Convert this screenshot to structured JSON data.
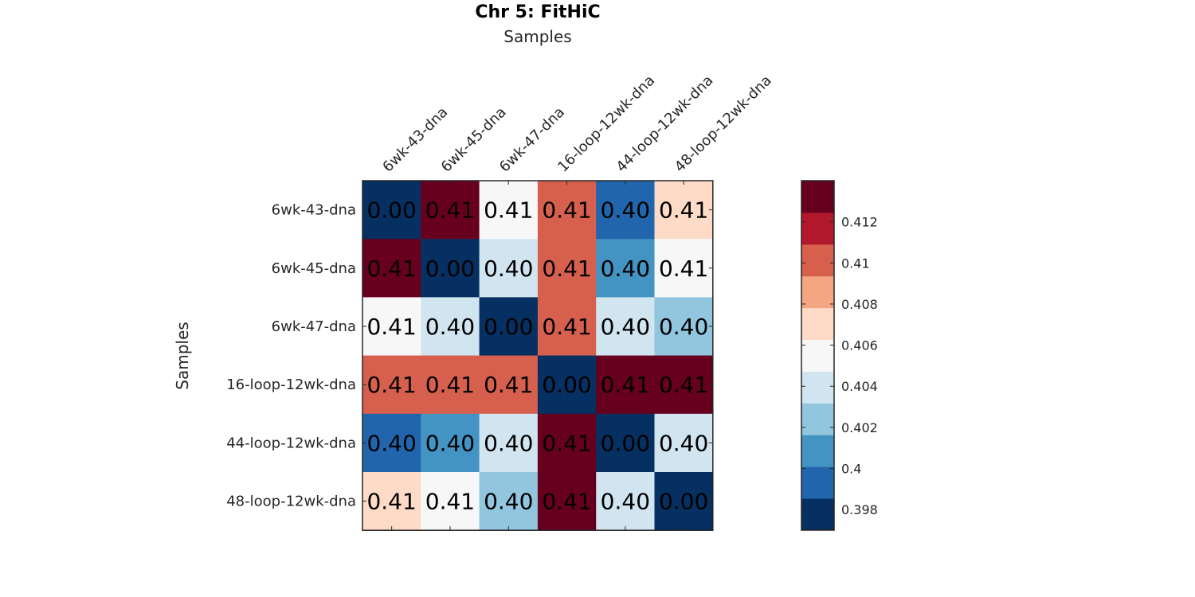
{
  "chart_data": {
    "type": "heatmap",
    "title": "Chr 5: FitHiC",
    "xlabel": "Samples",
    "ylabel": "Samples",
    "x_categories": [
      "6wk-43-dna",
      "6wk-45-dna",
      "6wk-47-dna",
      "16-loop-12wk-dna",
      "44-loop-12wk-dna",
      "48-loop-12wk-dna"
    ],
    "y_categories": [
      "6wk-43-dna",
      "6wk-45-dna",
      "6wk-47-dna",
      "16-loop-12wk-dna",
      "44-loop-12wk-dna",
      "48-loop-12wk-dna"
    ],
    "values": [
      [
        0.0,
        0.4138,
        0.4062,
        0.4101,
        0.399,
        0.4065
      ],
      [
        0.4138,
        0.0,
        0.4041,
        0.41,
        0.4009,
        0.4061
      ],
      [
        0.4062,
        0.4041,
        0.0,
        0.4101,
        0.4041,
        0.4028
      ],
      [
        0.4101,
        0.41,
        0.4101,
        0.0,
        0.414,
        0.4139
      ],
      [
        0.399,
        0.4009,
        0.4041,
        0.414,
        0.0,
        0.4041
      ],
      [
        0.4065,
        0.4061,
        0.4028,
        0.4139,
        0.4041,
        0.0
      ]
    ],
    "cell_labels": [
      [
        "0.00",
        "0.41",
        "0.41",
        "0.41",
        "0.40",
        "0.41"
      ],
      [
        "0.41",
        "0.00",
        "0.40",
        "0.41",
        "0.40",
        "0.41"
      ],
      [
        "0.41",
        "0.40",
        "0.00",
        "0.41",
        "0.40",
        "0.40"
      ],
      [
        "0.41",
        "0.41",
        "0.41",
        "0.00",
        "0.41",
        "0.41"
      ],
      [
        "0.40",
        "0.40",
        "0.40",
        "0.41",
        "0.00",
        "0.40"
      ],
      [
        "0.41",
        "0.41",
        "0.40",
        "0.41",
        "0.40",
        "0.00"
      ]
    ],
    "colorbar": {
      "range": [
        0.397,
        0.414
      ],
      "ticks": [
        {
          "value": 0.398,
          "label": "0.398"
        },
        {
          "value": 0.4,
          "label": "0.4"
        },
        {
          "value": 0.402,
          "label": "0.402"
        },
        {
          "value": 0.404,
          "label": "0.404"
        },
        {
          "value": 0.406,
          "label": "0.406"
        },
        {
          "value": 0.408,
          "label": "0.408"
        },
        {
          "value": 0.41,
          "label": "0.41"
        },
        {
          "value": 0.412,
          "label": "0.412"
        }
      ],
      "colors": [
        "#053061",
        "#2166ac",
        "#4393c3",
        "#92c5de",
        "#d1e5f0",
        "#f7f7f7",
        "#fddbc7",
        "#f4a582",
        "#d6604d",
        "#b2182b",
        "#67001f"
      ]
    }
  }
}
